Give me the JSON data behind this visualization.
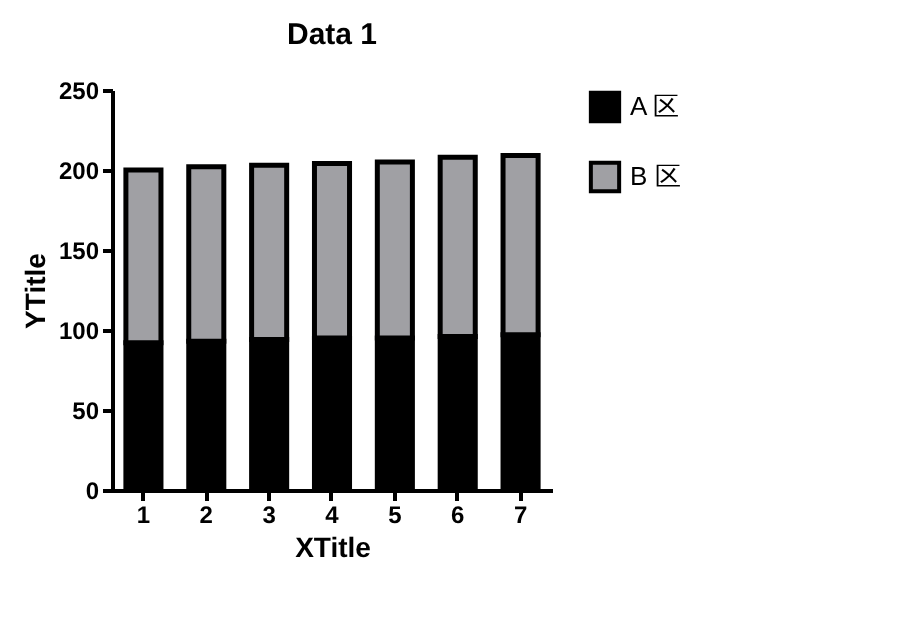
{
  "chart_data": {
    "type": "bar",
    "title": "Data 1",
    "xlabel": "XTitle",
    "ylabel": "YTitle",
    "categories": [
      "1",
      "2",
      "3",
      "4",
      "5",
      "6",
      "7"
    ],
    "stacked": true,
    "series": [
      {
        "name": "A 区",
        "color": "#000000",
        "values": [
          92,
          93,
          94,
          95,
          95,
          96,
          97
        ]
      },
      {
        "name": "B 区",
        "color": "#a0a0a4",
        "values": [
          108,
          109,
          109,
          109,
          110,
          112,
          112
        ]
      }
    ],
    "ylim": [
      0,
      250
    ],
    "yticks": [
      0,
      50,
      100,
      150,
      200,
      250
    ],
    "grid": false,
    "legend": "right"
  }
}
